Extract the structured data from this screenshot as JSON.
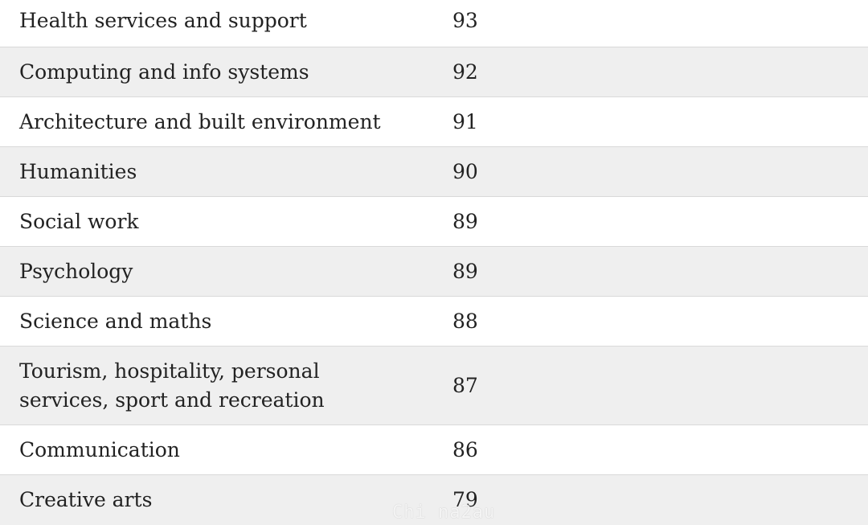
{
  "rows": [
    {
      "label": "Health services and support",
      "value": "93"
    },
    {
      "label": "Computing and info systems",
      "value": "92"
    },
    {
      "label": "Architecture and built environment",
      "value": "91"
    },
    {
      "label": "Humanities",
      "value": "90"
    },
    {
      "label": "Social work",
      "value": "89"
    },
    {
      "label": "Psychology",
      "value": "89"
    },
    {
      "label": "Science and maths",
      "value": "88"
    },
    {
      "label": "Tourism, hospitality, personal services, sport and recreation",
      "value": "87"
    },
    {
      "label": "Communication",
      "value": "86"
    },
    {
      "label": "Creative arts",
      "value": "79"
    }
  ],
  "watermark": "Chi na2au",
  "colors": {
    "shaded_row": "#efefef",
    "border": "#d9d9d9",
    "text": "#222222"
  }
}
